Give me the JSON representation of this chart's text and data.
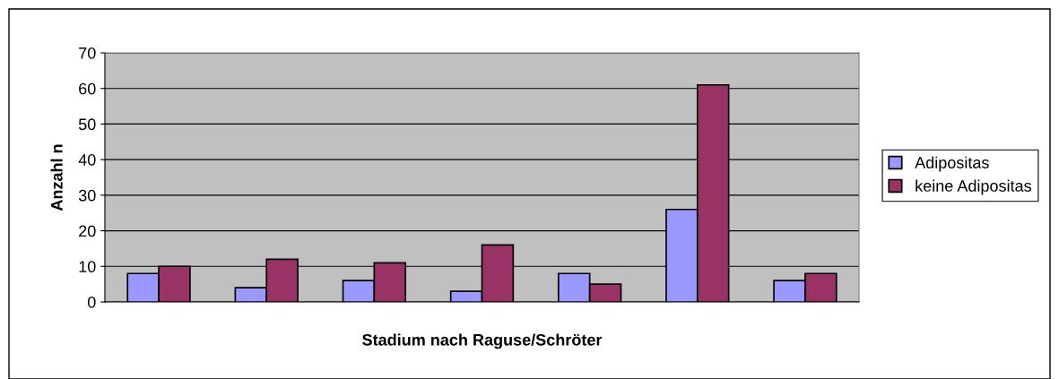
{
  "chart_data": {
    "type": "bar",
    "xlabel": "Stadium nach Raguse/Schröter",
    "ylabel": "Anzahl n",
    "categories": [
      null,
      null,
      null,
      null,
      null,
      null,
      null
    ],
    "series": [
      {
        "name": "Adipositas",
        "color": "#9999ff",
        "values": [
          8,
          4,
          6,
          3,
          8,
          26,
          6
        ]
      },
      {
        "name": "keine Adipositas",
        "color": "#993366",
        "values": [
          10,
          12,
          11,
          16,
          5,
          61,
          8
        ]
      }
    ],
    "ylim": [
      0,
      70
    ],
    "yticks": [
      0,
      10,
      20,
      30,
      40,
      50,
      60,
      70
    ],
    "grid": "y",
    "legend": "right"
  }
}
